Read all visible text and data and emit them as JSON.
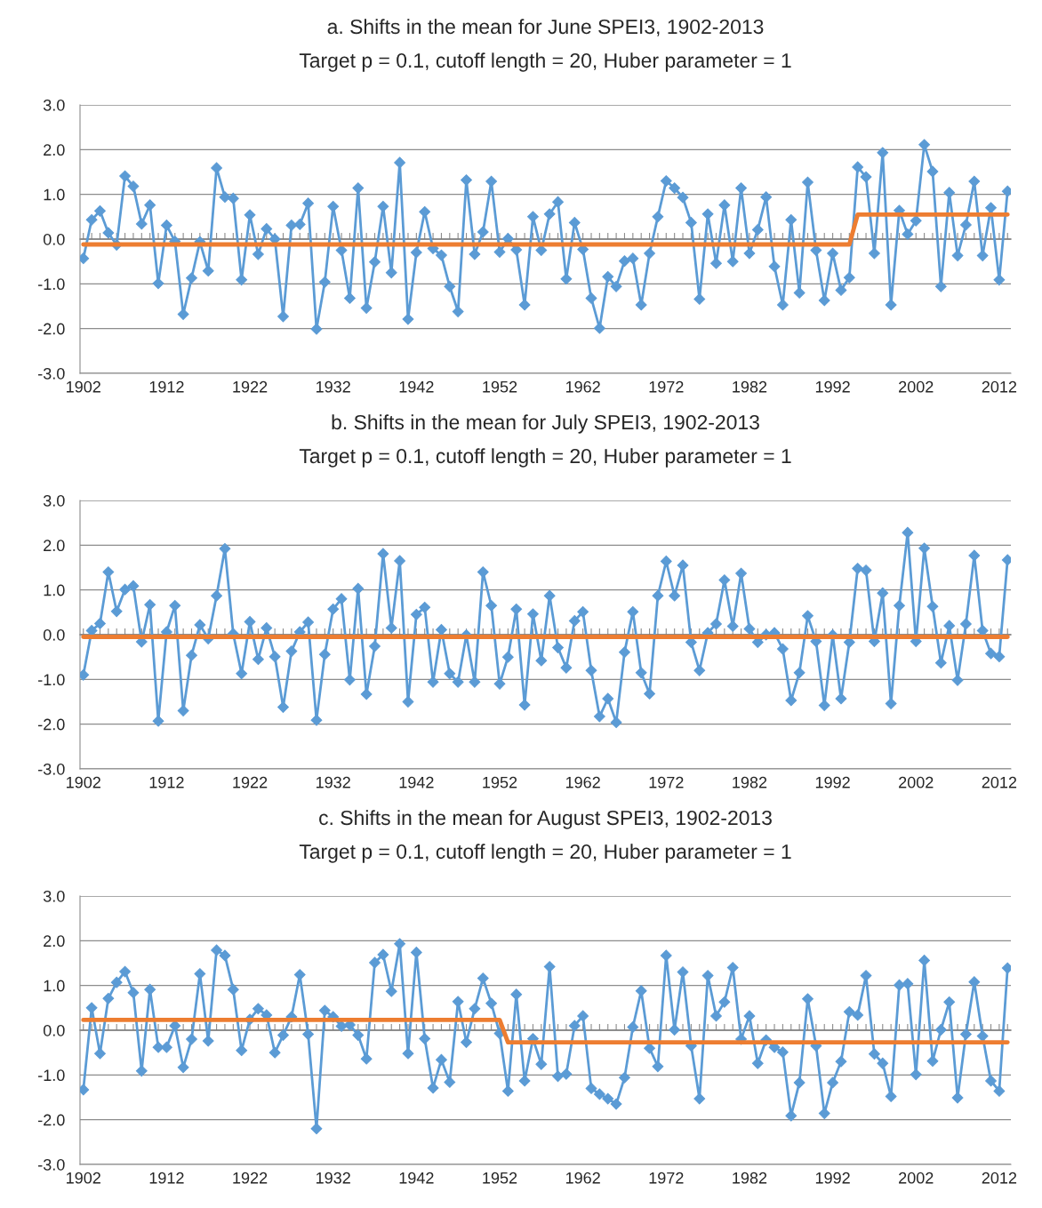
{
  "chart_data": [
    {
      "type": "line",
      "title": "a. Shifts in the mean for June SPEI3, 1902-2013",
      "subtitle": "Target p = 0.1, cutoff length = 20, Huber parameter = 1",
      "categories": [
        "1902",
        null,
        null,
        null,
        null,
        null,
        null,
        null,
        null,
        null,
        "1912",
        null,
        null,
        null,
        null,
        null,
        null,
        null,
        null,
        null,
        "1922",
        null,
        null,
        null,
        null,
        null,
        null,
        null,
        null,
        null,
        "1932",
        null,
        null,
        null,
        null,
        null,
        null,
        null,
        null,
        null,
        "1942",
        null,
        null,
        null,
        null,
        null,
        null,
        null,
        null,
        null,
        "1952",
        null,
        null,
        null,
        null,
        null,
        null,
        null,
        null,
        null,
        "1962",
        null,
        null,
        null,
        null,
        null,
        null,
        null,
        null,
        null,
        "1972",
        null,
        null,
        null,
        null,
        null,
        null,
        null,
        null,
        null,
        "1982",
        null,
        null,
        null,
        null,
        null,
        null,
        null,
        null,
        null,
        "1992",
        null,
        null,
        null,
        null,
        null,
        null,
        null,
        null,
        null,
        "2002",
        null,
        null,
        null,
        null,
        null,
        null,
        null,
        null,
        null,
        "2012",
        null
      ],
      "ylim": [
        -3,
        3
      ],
      "yticks": [
        {
          "value": 3,
          "label": "3.0"
        },
        {
          "value": 2,
          "label": "2.0"
        },
        {
          "value": 1,
          "label": "1.0"
        },
        {
          "value": 0,
          "label": "0.0"
        },
        {
          "value": -1,
          "label": "-1.0"
        },
        {
          "value": -2,
          "label": "-2.0"
        },
        {
          "value": -3,
          "label": "-3.0"
        }
      ],
      "grid": "y",
      "series": [
        {
          "color": "#5b9bd5",
          "marker": "diamond",
          "values": [
            -0.43,
            0.43,
            0.63,
            0.14,
            -0.13,
            1.41,
            1.18,
            0.34,
            0.76,
            -0.99,
            0.31,
            -0.05,
            -1.68,
            -0.87,
            -0.06,
            -0.71,
            1.59,
            0.94,
            0.91,
            -0.91,
            0.54,
            -0.34,
            0.23,
            0.0,
            -1.73,
            0.31,
            0.33,
            0.8,
            -2.01,
            -0.96,
            0.73,
            -0.25,
            -1.32,
            1.14,
            -1.54,
            -0.51,
            0.73,
            -0.75,
            1.71,
            -1.79,
            -0.3,
            0.61,
            -0.21,
            -0.36,
            -1.06,
            -1.62,
            1.32,
            -0.34,
            0.16,
            1.29,
            -0.29,
            0.01,
            -0.24,
            -1.47,
            0.5,
            -0.25,
            0.56,
            0.83,
            -0.89,
            0.37,
            -0.23,
            -1.32,
            -1.99,
            -0.84,
            -1.06,
            -0.49,
            -0.43,
            -1.47,
            -0.32,
            0.5,
            1.3,
            1.14,
            0.93,
            0.37,
            -1.34,
            0.56,
            -0.54,
            0.76,
            -0.5,
            1.14,
            -0.32,
            0.21,
            0.94,
            -0.61,
            -1.47,
            0.43,
            -1.2,
            1.27,
            -0.25,
            -1.37,
            -0.32,
            -1.14,
            -0.86,
            1.61,
            1.39,
            -0.32,
            1.93,
            -1.47,
            0.64,
            0.11,
            0.41,
            2.11,
            1.51,
            -1.06,
            1.04,
            -0.37,
            0.32,
            1.29,
            -0.37,
            0.7,
            -0.91,
            1.07
          ]
        },
        {
          "color": "#ed7d31",
          "marker": "none",
          "values": [
            -0.12,
            -0.12,
            -0.12,
            -0.12,
            -0.12,
            -0.12,
            -0.12,
            -0.12,
            -0.12,
            -0.12,
            -0.12,
            -0.12,
            -0.12,
            -0.12,
            -0.12,
            -0.12,
            -0.12,
            -0.12,
            -0.12,
            -0.12,
            -0.12,
            -0.12,
            -0.12,
            -0.12,
            -0.12,
            -0.12,
            -0.12,
            -0.12,
            -0.12,
            -0.12,
            -0.12,
            -0.12,
            -0.12,
            -0.12,
            -0.12,
            -0.12,
            -0.12,
            -0.12,
            -0.12,
            -0.12,
            -0.12,
            -0.12,
            -0.12,
            -0.12,
            -0.12,
            -0.12,
            -0.12,
            -0.12,
            -0.12,
            -0.12,
            -0.12,
            -0.12,
            -0.12,
            -0.12,
            -0.12,
            -0.12,
            -0.12,
            -0.12,
            -0.12,
            -0.12,
            -0.12,
            -0.12,
            -0.12,
            -0.12,
            -0.12,
            -0.12,
            -0.12,
            -0.12,
            -0.12,
            -0.12,
            -0.12,
            -0.12,
            -0.12,
            -0.12,
            -0.12,
            -0.12,
            -0.12,
            -0.12,
            -0.12,
            -0.12,
            -0.12,
            -0.12,
            -0.12,
            -0.12,
            -0.12,
            -0.12,
            -0.12,
            -0.12,
            -0.12,
            -0.12,
            -0.12,
            -0.12,
            -0.12,
            0.55,
            0.55,
            0.55,
            0.55,
            0.55,
            0.55,
            0.55,
            0.55,
            0.55,
            0.55,
            0.55,
            0.55,
            0.55,
            0.55,
            0.55,
            0.55,
            0.55,
            0.55,
            0.55
          ]
        }
      ]
    },
    {
      "type": "line",
      "title": "b. Shifts in the mean for July SPEI3, 1902-2013",
      "subtitle": "Target p = 0.1, cutoff length = 20, Huber parameter = 1",
      "categories": [
        "1902",
        null,
        null,
        null,
        null,
        null,
        null,
        null,
        null,
        null,
        "1912",
        null,
        null,
        null,
        null,
        null,
        null,
        null,
        null,
        null,
        "1922",
        null,
        null,
        null,
        null,
        null,
        null,
        null,
        null,
        null,
        "1932",
        null,
        null,
        null,
        null,
        null,
        null,
        null,
        null,
        null,
        "1942",
        null,
        null,
        null,
        null,
        null,
        null,
        null,
        null,
        null,
        "1952",
        null,
        null,
        null,
        null,
        null,
        null,
        null,
        null,
        null,
        "1962",
        null,
        null,
        null,
        null,
        null,
        null,
        null,
        null,
        null,
        "1972",
        null,
        null,
        null,
        null,
        null,
        null,
        null,
        null,
        null,
        "1982",
        null,
        null,
        null,
        null,
        null,
        null,
        null,
        null,
        null,
        "1992",
        null,
        null,
        null,
        null,
        null,
        null,
        null,
        null,
        null,
        "2002",
        null,
        null,
        null,
        null,
        null,
        null,
        null,
        null,
        null,
        "2012",
        null
      ],
      "ylim": [
        -3,
        3
      ],
      "yticks": [
        {
          "value": 3,
          "label": "3.0"
        },
        {
          "value": 2,
          "label": "2.0"
        },
        {
          "value": 1,
          "label": "1.0"
        },
        {
          "value": 0,
          "label": "0.0"
        },
        {
          "value": -1,
          "label": "-1.0"
        },
        {
          "value": -2,
          "label": "-2.0"
        },
        {
          "value": -3,
          "label": "-3.0"
        }
      ],
      "grid": "y",
      "series": [
        {
          "color": "#5b9bd5",
          "marker": "diamond",
          "values": [
            -0.9,
            0.09,
            0.25,
            1.4,
            0.52,
            1.01,
            1.09,
            -0.16,
            0.67,
            -1.93,
            0.06,
            0.65,
            -1.7,
            -0.46,
            0.22,
            -0.09,
            0.87,
            1.92,
            0.02,
            -0.87,
            0.29,
            -0.55,
            0.15,
            -0.49,
            -1.62,
            -0.37,
            0.06,
            0.28,
            -1.91,
            -0.44,
            0.57,
            0.8,
            -1.01,
            1.03,
            -1.33,
            -0.26,
            1.81,
            0.15,
            1.65,
            -1.5,
            0.45,
            0.61,
            -1.06,
            0.11,
            -0.87,
            -1.06,
            -0.01,
            -1.06,
            1.4,
            0.65,
            -1.1,
            -0.5,
            0.57,
            -1.57,
            0.46,
            -0.58,
            0.87,
            -0.29,
            -0.74,
            0.31,
            0.51,
            -0.8,
            -1.83,
            -1.43,
            -1.96,
            -0.39,
            0.51,
            -0.85,
            -1.32,
            0.87,
            1.64,
            0.87,
            1.55,
            -0.17,
            -0.8,
            0.04,
            0.24,
            1.22,
            0.19,
            1.37,
            0.13,
            -0.17,
            0.0,
            0.04,
            -0.32,
            -1.47,
            -0.85,
            0.42,
            -0.15,
            -1.58,
            -0.01,
            -1.43,
            -0.17,
            1.48,
            1.44,
            -0.15,
            0.93,
            -1.54,
            0.65,
            2.28,
            -0.15,
            1.93,
            0.63,
            -0.63,
            0.2,
            -1.02,
            0.24,
            1.77,
            0.09,
            -0.42,
            -0.49,
            1.67
          ]
        },
        {
          "color": "#ed7d31",
          "marker": "none",
          "values": [
            -0.05,
            -0.05,
            -0.05,
            -0.05,
            -0.05,
            -0.05,
            -0.05,
            -0.05,
            -0.05,
            -0.05,
            -0.05,
            -0.05,
            -0.05,
            -0.05,
            -0.05,
            -0.05,
            -0.05,
            -0.05,
            -0.05,
            -0.05,
            -0.05,
            -0.05,
            -0.05,
            -0.05,
            -0.05,
            -0.05,
            -0.05,
            -0.05,
            -0.05,
            -0.05,
            -0.05,
            -0.05,
            -0.05,
            -0.05,
            -0.05,
            -0.05,
            -0.05,
            -0.05,
            -0.05,
            -0.05,
            -0.05,
            -0.05,
            -0.05,
            -0.05,
            -0.05,
            -0.05,
            -0.05,
            -0.05,
            -0.05,
            -0.05,
            -0.05,
            -0.05,
            -0.05,
            -0.05,
            -0.05,
            -0.05,
            -0.05,
            -0.05,
            -0.05,
            -0.05,
            -0.05,
            -0.05,
            -0.05,
            -0.05,
            -0.05,
            -0.05,
            -0.05,
            -0.05,
            -0.05,
            -0.05,
            -0.05,
            -0.05,
            -0.05,
            -0.05,
            -0.05,
            -0.05,
            -0.05,
            -0.05,
            -0.05,
            -0.05,
            -0.05,
            -0.05,
            -0.05,
            -0.05,
            -0.05,
            -0.05,
            -0.05,
            -0.05,
            -0.05,
            -0.05,
            -0.05,
            -0.05,
            -0.05,
            -0.05,
            -0.05,
            -0.05,
            -0.05,
            -0.05,
            -0.05,
            -0.05,
            -0.05,
            -0.05,
            -0.05,
            -0.05,
            -0.05,
            -0.05,
            -0.05,
            -0.05,
            -0.05,
            -0.05,
            -0.05,
            -0.05
          ]
        }
      ]
    },
    {
      "type": "line",
      "title": "c. Shifts in the mean for August SPEI3, 1902-2013",
      "subtitle": "Target p = 0.1, cutoff length = 20, Huber parameter = 1",
      "categories": [
        "1902",
        null,
        null,
        null,
        null,
        null,
        null,
        null,
        null,
        null,
        "1912",
        null,
        null,
        null,
        null,
        null,
        null,
        null,
        null,
        null,
        "1922",
        null,
        null,
        null,
        null,
        null,
        null,
        null,
        null,
        null,
        "1932",
        null,
        null,
        null,
        null,
        null,
        null,
        null,
        null,
        null,
        "1942",
        null,
        null,
        null,
        null,
        null,
        null,
        null,
        null,
        null,
        "1952",
        null,
        null,
        null,
        null,
        null,
        null,
        null,
        null,
        null,
        "1962",
        null,
        null,
        null,
        null,
        null,
        null,
        null,
        null,
        null,
        "1972",
        null,
        null,
        null,
        null,
        null,
        null,
        null,
        null,
        null,
        "1982",
        null,
        null,
        null,
        null,
        null,
        null,
        null,
        null,
        null,
        "1992",
        null,
        null,
        null,
        null,
        null,
        null,
        null,
        null,
        null,
        "2002",
        null,
        null,
        null,
        null,
        null,
        null,
        null,
        null,
        null,
        "2012",
        null
      ],
      "ylim": [
        -3,
        3
      ],
      "yticks": [
        {
          "value": 3,
          "label": "3.0"
        },
        {
          "value": 2,
          "label": "2.0"
        },
        {
          "value": 1,
          "label": "1.0"
        },
        {
          "value": 0,
          "label": "0.0"
        },
        {
          "value": -1,
          "label": "-1.0"
        },
        {
          "value": -2,
          "label": "-2.0"
        },
        {
          "value": -3,
          "label": "-3.0"
        }
      ],
      "grid": "y",
      "series": [
        {
          "color": "#5b9bd5",
          "marker": "diamond",
          "values": [
            -1.33,
            0.5,
            -0.52,
            0.71,
            1.07,
            1.31,
            0.84,
            -0.91,
            0.91,
            -0.38,
            -0.38,
            0.1,
            -0.83,
            -0.2,
            1.26,
            -0.24,
            1.79,
            1.67,
            0.91,
            -0.45,
            0.24,
            0.48,
            0.34,
            -0.5,
            -0.11,
            0.3,
            1.24,
            -0.09,
            -2.2,
            0.44,
            0.3,
            0.09,
            0.12,
            -0.11,
            -0.64,
            1.51,
            1.69,
            0.87,
            1.93,
            -0.52,
            1.74,
            -0.19,
            -1.29,
            -0.66,
            -1.16,
            0.64,
            -0.27,
            0.48,
            1.16,
            0.6,
            -0.07,
            -1.36,
            0.8,
            -1.13,
            -0.19,
            -0.76,
            1.42,
            -1.03,
            -0.98,
            0.1,
            0.32,
            -1.3,
            -1.43,
            -1.53,
            -1.65,
            -1.06,
            0.07,
            0.88,
            -0.4,
            -0.81,
            1.67,
            0.01,
            1.3,
            -0.35,
            -1.53,
            1.22,
            0.32,
            0.63,
            1.4,
            -0.2,
            0.32,
            -0.74,
            -0.22,
            -0.38,
            -0.49,
            -1.91,
            -1.17,
            0.7,
            -0.35,
            -1.86,
            -1.17,
            -0.7,
            0.41,
            0.34,
            1.22,
            -0.53,
            -0.74,
            -1.48,
            1.01,
            1.04,
            -0.99,
            1.56,
            -0.69,
            0.01,
            0.63,
            -1.51,
            -0.09,
            1.08,
            -0.13,
            -1.13,
            -1.36,
            1.39
          ]
        },
        {
          "color": "#ed7d31",
          "marker": "none",
          "values": [
            0.23,
            0.23,
            0.23,
            0.23,
            0.23,
            0.23,
            0.23,
            0.23,
            0.23,
            0.23,
            0.23,
            0.23,
            0.23,
            0.23,
            0.23,
            0.23,
            0.23,
            0.23,
            0.23,
            0.23,
            0.23,
            0.23,
            0.23,
            0.23,
            0.23,
            0.23,
            0.23,
            0.23,
            0.23,
            0.23,
            0.23,
            0.23,
            0.23,
            0.23,
            0.23,
            0.23,
            0.23,
            0.23,
            0.23,
            0.23,
            0.23,
            0.23,
            0.23,
            0.23,
            0.23,
            0.23,
            0.23,
            0.23,
            0.23,
            0.23,
            0.23,
            -0.27,
            -0.27,
            -0.27,
            -0.27,
            -0.27,
            -0.27,
            -0.27,
            -0.27,
            -0.27,
            -0.27,
            -0.27,
            -0.27,
            -0.27,
            -0.27,
            -0.27,
            -0.27,
            -0.27,
            -0.27,
            -0.27,
            -0.27,
            -0.27,
            -0.27,
            -0.27,
            -0.27,
            -0.27,
            -0.27,
            -0.27,
            -0.27,
            -0.27,
            -0.27,
            -0.27,
            -0.27,
            -0.27,
            -0.27,
            -0.27,
            -0.27,
            -0.27,
            -0.27,
            -0.27,
            -0.27,
            -0.27,
            -0.27,
            -0.27,
            -0.27,
            -0.27,
            -0.27,
            -0.27,
            -0.27,
            -0.27,
            -0.27,
            -0.27,
            -0.27,
            -0.27,
            -0.27,
            -0.27,
            -0.27,
            -0.27,
            -0.27,
            -0.27,
            -0.27,
            -0.27
          ]
        }
      ]
    }
  ]
}
